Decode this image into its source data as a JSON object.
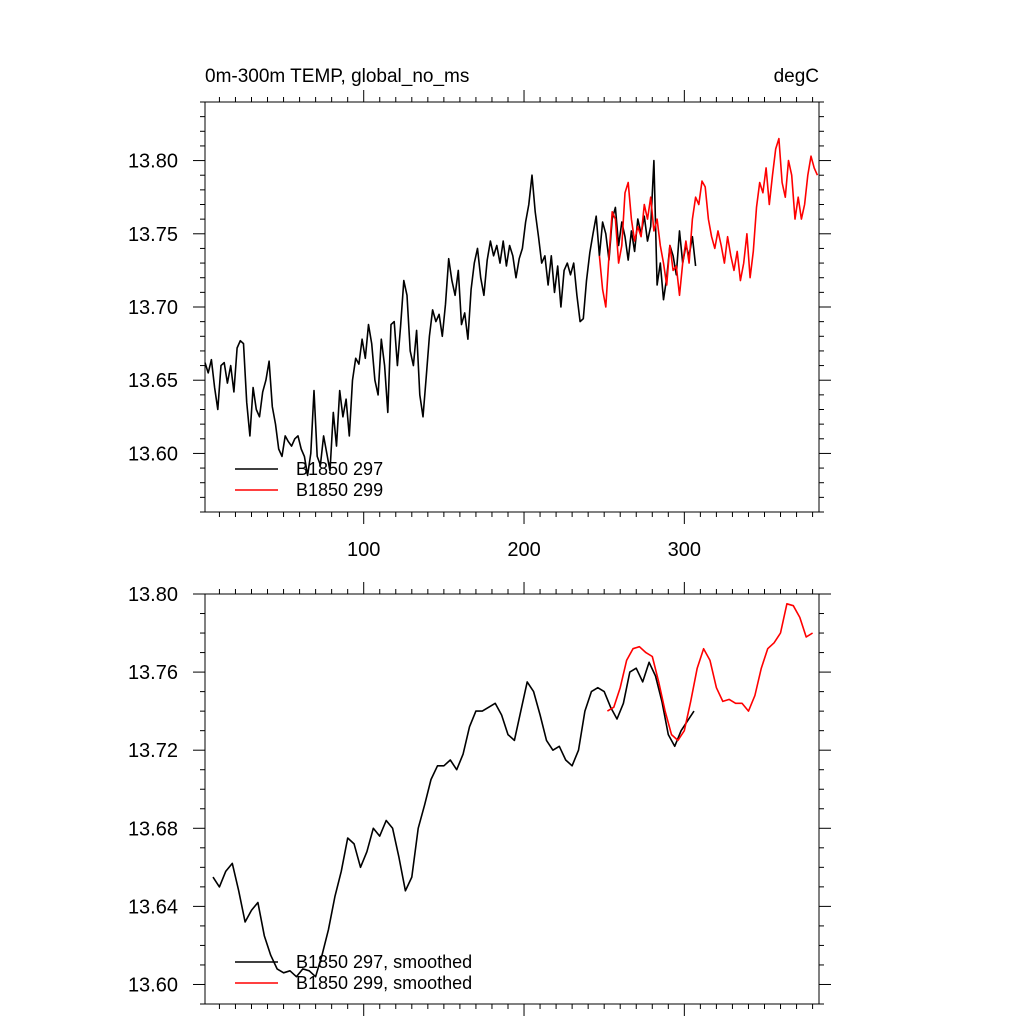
{
  "chart_data": [
    {
      "type": "line",
      "title": "0m-300m TEMP, global_no_ms",
      "units": "degC",
      "xlim": [
        1,
        384
      ],
      "ylim": [
        13.56,
        13.84
      ],
      "xticks": [
        100,
        200,
        300
      ],
      "xtick_labels": [
        "100",
        "200",
        "300"
      ],
      "yticks": [
        13.6,
        13.65,
        13.7,
        13.75,
        13.8
      ],
      "ytick_labels": [
        "13.60",
        "13.65",
        "13.70",
        "13.75",
        "13.80"
      ],
      "grid": false,
      "legend_position": "bottom-left",
      "series": [
        {
          "name": "B1850 297",
          "color": "#000000",
          "x": [
            1,
            3,
            5,
            7,
            9,
            11,
            13,
            15,
            17,
            19,
            21,
            23,
            25,
            27,
            29,
            31,
            33,
            35,
            37,
            39,
            41,
            43,
            45,
            47,
            49,
            51,
            53,
            55,
            57,
            59,
            61,
            63,
            65,
            67,
            69,
            71,
            73,
            75,
            77,
            79,
            81,
            83,
            85,
            87,
            89,
            91,
            93,
            95,
            97,
            99,
            101,
            103,
            105,
            107,
            109,
            111,
            113,
            115,
            117,
            119,
            121,
            123,
            125,
            127,
            129,
            131,
            133,
            135,
            137,
            139,
            141,
            143,
            145,
            147,
            149,
            151,
            153,
            155,
            157,
            159,
            161,
            163,
            165,
            167,
            169,
            171,
            173,
            175,
            177,
            179,
            181,
            183,
            185,
            187,
            189,
            191,
            193,
            195,
            197,
            199,
            201,
            203,
            205,
            207,
            209,
            211,
            213,
            215,
            217,
            219,
            221,
            223,
            225,
            227,
            229,
            231,
            233,
            235,
            237,
            239,
            241,
            243,
            245,
            247,
            249,
            251,
            253,
            255,
            257,
            259,
            261,
            263,
            265,
            267,
            269,
            271,
            273,
            275,
            277,
            279,
            281,
            283,
            285,
            287,
            289,
            291,
            293,
            295,
            297,
            299,
            301,
            303,
            305,
            307
          ],
          "y": [
            13.662,
            13.655,
            13.664,
            13.645,
            13.63,
            13.66,
            13.662,
            13.648,
            13.66,
            13.642,
            13.672,
            13.677,
            13.675,
            13.635,
            13.612,
            13.645,
            13.63,
            13.625,
            13.642,
            13.65,
            13.663,
            13.632,
            13.62,
            13.603,
            13.598,
            13.612,
            13.608,
            13.605,
            13.61,
            13.612,
            13.603,
            13.598,
            13.585,
            13.6,
            13.643,
            13.598,
            13.592,
            13.612,
            13.6,
            13.588,
            13.628,
            13.605,
            13.643,
            13.625,
            13.637,
            13.612,
            13.65,
            13.665,
            13.661,
            13.678,
            13.665,
            13.688,
            13.675,
            13.65,
            13.64,
            13.678,
            13.66,
            13.628,
            13.688,
            13.69,
            13.66,
            13.687,
            13.718,
            13.708,
            13.67,
            13.66,
            13.684,
            13.64,
            13.625,
            13.652,
            13.68,
            13.698,
            13.69,
            13.695,
            13.68,
            13.702,
            13.733,
            13.718,
            13.708,
            13.725,
            13.688,
            13.696,
            13.678,
            13.712,
            13.73,
            13.74,
            13.72,
            13.708,
            13.732,
            13.745,
            13.735,
            13.742,
            13.73,
            13.745,
            13.728,
            13.742,
            13.735,
            13.72,
            13.733,
            13.74,
            13.758,
            13.77,
            13.79,
            13.765,
            13.748,
            13.73,
            13.735,
            13.715,
            13.735,
            13.71,
            13.728,
            13.7,
            13.725,
            13.73,
            13.722,
            13.73,
            13.708,
            13.69,
            13.692,
            13.718,
            13.737,
            13.75,
            13.762,
            13.735,
            13.758,
            13.75,
            13.732,
            13.76,
            13.768,
            13.742,
            13.758,
            13.748,
            13.732,
            13.752,
            13.738,
            13.76,
            13.75,
            13.762,
            13.745,
            13.755,
            13.8,
            13.715,
            13.73,
            13.705,
            13.72,
            13.742,
            13.735,
            13.722,
            13.752,
            13.73,
            13.742,
            13.735,
            13.748,
            13.728
          ]
        },
        {
          "name": "B1850 299",
          "color": "#ff0000",
          "x": [
            247,
            249,
            251,
            253,
            255,
            257,
            259,
            261,
            263,
            265,
            267,
            269,
            271,
            273,
            275,
            277,
            279,
            281,
            283,
            285,
            287,
            289,
            291,
            293,
            295,
            297,
            299,
            301,
            303,
            305,
            307,
            309,
            311,
            313,
            315,
            317,
            319,
            321,
            323,
            325,
            327,
            329,
            331,
            333,
            335,
            337,
            339,
            341,
            343,
            345,
            347,
            349,
            351,
            353,
            355,
            357,
            359,
            361,
            363,
            365,
            367,
            369,
            371,
            373,
            375,
            377,
            379,
            381,
            383
          ],
          "y": [
            13.735,
            13.712,
            13.7,
            13.735,
            13.765,
            13.76,
            13.73,
            13.742,
            13.778,
            13.785,
            13.76,
            13.745,
            13.755,
            13.748,
            13.77,
            13.76,
            13.775,
            13.752,
            13.76,
            13.742,
            13.73,
            13.715,
            13.742,
            13.725,
            13.728,
            13.708,
            13.73,
            13.745,
            13.73,
            13.76,
            13.775,
            13.77,
            13.786,
            13.782,
            13.76,
            13.748,
            13.74,
            13.752,
            13.742,
            13.73,
            13.748,
            13.735,
            13.725,
            13.738,
            13.718,
            13.73,
            13.75,
            13.72,
            13.738,
            13.768,
            13.785,
            13.778,
            13.795,
            13.77,
            13.79,
            13.808,
            13.815,
            13.785,
            13.775,
            13.8,
            13.79,
            13.76,
            13.775,
            13.76,
            13.77,
            13.79,
            13.803,
            13.795,
            13.79
          ]
        }
      ]
    },
    {
      "type": "line",
      "title": "",
      "xlim": [
        1,
        384
      ],
      "ylim": [
        13.59,
        13.8
      ],
      "xticks": [
        100,
        200,
        300
      ],
      "yticks": [
        13.6,
        13.64,
        13.68,
        13.72,
        13.76,
        13.8
      ],
      "ytick_labels": [
        "13.60",
        "13.64",
        "13.68",
        "13.72",
        "13.76",
        "13.80"
      ],
      "grid": false,
      "legend_position": "bottom-left",
      "series": [
        {
          "name": "B1850 297, smoothed",
          "color": "#000000",
          "x": [
            6,
            10,
            14,
            18,
            22,
            26,
            30,
            34,
            38,
            42,
            46,
            50,
            54,
            58,
            62,
            66,
            70,
            74,
            78,
            82,
            86,
            90,
            94,
            98,
            102,
            106,
            110,
            114,
            118,
            122,
            126,
            130,
            134,
            138,
            142,
            146,
            150,
            154,
            158,
            162,
            166,
            170,
            174,
            178,
            182,
            186,
            190,
            194,
            198,
            202,
            206,
            210,
            214,
            218,
            222,
            226,
            230,
            234,
            238,
            242,
            246,
            250,
            254,
            258,
            262,
            266,
            270,
            274,
            278,
            282,
            286,
            290,
            294,
            298,
            302,
            306
          ],
          "y": [
            13.655,
            13.65,
            13.658,
            13.662,
            13.648,
            13.632,
            13.638,
            13.642,
            13.625,
            13.615,
            13.608,
            13.606,
            13.607,
            13.604,
            13.608,
            13.607,
            13.604,
            13.615,
            13.628,
            13.645,
            13.658,
            13.675,
            13.672,
            13.66,
            13.668,
            13.68,
            13.676,
            13.684,
            13.68,
            13.665,
            13.648,
            13.655,
            13.68,
            13.692,
            13.705,
            13.712,
            13.712,
            13.715,
            13.71,
            13.718,
            13.732,
            13.74,
            13.74,
            13.742,
            13.744,
            13.738,
            13.728,
            13.725,
            13.74,
            13.755,
            13.75,
            13.738,
            13.725,
            13.72,
            13.722,
            13.715,
            13.712,
            13.72,
            13.74,
            13.75,
            13.752,
            13.75,
            13.742,
            13.736,
            13.744,
            13.76,
            13.762,
            13.755,
            13.765,
            13.758,
            13.745,
            13.728,
            13.722,
            13.73,
            13.735,
            13.74
          ]
        },
        {
          "name": "B1850 299, smoothed",
          "color": "#ff0000",
          "x": [
            252,
            256,
            260,
            264,
            268,
            272,
            276,
            280,
            284,
            288,
            292,
            296,
            300,
            304,
            308,
            312,
            316,
            320,
            324,
            328,
            332,
            336,
            340,
            344,
            348,
            352,
            356,
            360,
            364,
            368,
            372,
            376,
            380
          ],
          "y": [
            13.74,
            13.742,
            13.752,
            13.766,
            13.772,
            13.773,
            13.77,
            13.768,
            13.755,
            13.74,
            13.728,
            13.725,
            13.73,
            13.745,
            13.762,
            13.772,
            13.766,
            13.752,
            13.745,
            13.746,
            13.744,
            13.744,
            13.74,
            13.748,
            13.762,
            13.772,
            13.775,
            13.78,
            13.795,
            13.794,
            13.788,
            13.778,
            13.78
          ]
        }
      ]
    }
  ]
}
